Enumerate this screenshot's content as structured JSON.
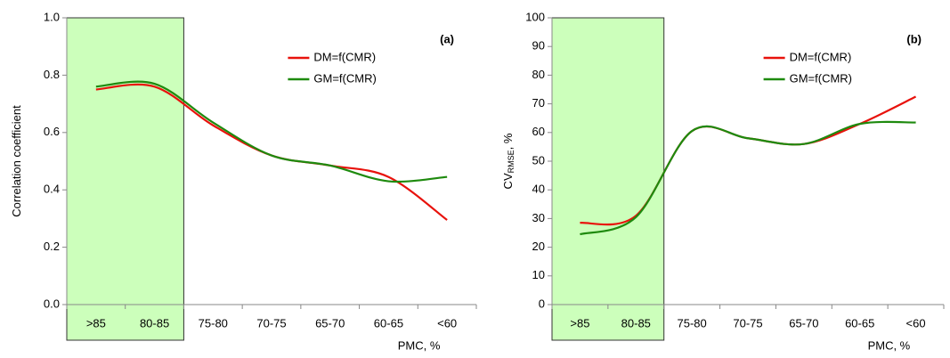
{
  "chart_data": [
    {
      "type": "line",
      "annotation": "(a)",
      "xlabel": "PMC, %",
      "ylabel": [
        "Correlation coefficient"
      ],
      "categories": [
        ">85",
        "80-85",
        "75-80",
        "70-75",
        "65-70",
        "60-65",
        "<60"
      ],
      "series": [
        {
          "name": "DM=f(CMR)",
          "color": "#e8120c",
          "values": [
            0.75,
            0.76,
            0.625,
            0.52,
            0.485,
            0.445,
            0.295
          ]
        },
        {
          "name": "GM=f(CMR)",
          "color": "#1e8a0e",
          "values": [
            0.76,
            0.77,
            0.635,
            0.52,
            0.485,
            0.43,
            0.445
          ]
        }
      ],
      "ylim": [
        0,
        1
      ],
      "yticks": [
        {
          "value": 0,
          "label": "0.0"
        },
        0.2,
        0.4,
        0.6,
        0.8,
        {
          "value": 1,
          "label": "1.0"
        }
      ],
      "highlight_count": 2,
      "highlight_color": "#ccffbb"
    },
    {
      "type": "line",
      "annotation": "(b)",
      "xlabel": "PMC, %",
      "ylabel": [
        "CV",
        "RMSE",
        ", %"
      ],
      "categories": [
        ">85",
        "80-85",
        "75-80",
        "70-75",
        "65-70",
        "60-65",
        "<60"
      ],
      "series": [
        {
          "name": "DM=f(CMR)",
          "color": "#e8120c",
          "values": [
            28.5,
            31,
            60.5,
            58,
            56,
            63,
            72.5
          ]
        },
        {
          "name": "GM=f(CMR)",
          "color": "#1e8a0e",
          "values": [
            24.5,
            30.5,
            60.5,
            58,
            56,
            63,
            63.5
          ]
        }
      ],
      "ylim": [
        0,
        100
      ],
      "yticks": [
        0,
        10,
        20,
        30,
        40,
        50,
        60,
        70,
        80,
        90,
        100
      ],
      "highlight_count": 2,
      "highlight_color": "#ccffbb"
    }
  ]
}
